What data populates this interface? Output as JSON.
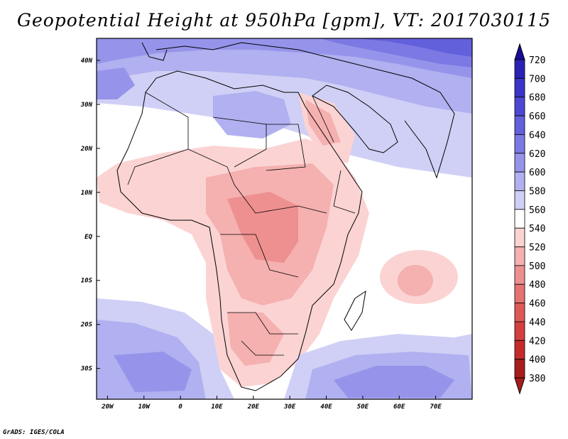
{
  "title": "Geopotential Height at 950hPa [gpm], VT: 2017030115",
  "footer": "GrADS: IGES/COLA",
  "map": {
    "lon_range": [
      -23,
      80
    ],
    "lat_range": [
      -37,
      45
    ],
    "x_ticks": [
      "20W",
      "10W",
      "0",
      "10E",
      "20E",
      "30E",
      "40E",
      "50E",
      "60E",
      "70E"
    ],
    "x_tick_values": [
      -20,
      -10,
      0,
      10,
      20,
      30,
      40,
      50,
      60,
      70
    ],
    "y_ticks": [
      "40N",
      "30N",
      "20N",
      "10N",
      "EQ",
      "10S",
      "20S",
      "30S"
    ],
    "y_tick_values": [
      40,
      30,
      20,
      10,
      0,
      -10,
      -20,
      -30
    ]
  },
  "colorbar": {
    "levels": [
      "720",
      "700",
      "680",
      "660",
      "640",
      "620",
      "600",
      "580",
      "560",
      "540",
      "520",
      "500",
      "480",
      "460",
      "440",
      "420",
      "400",
      "380"
    ],
    "colors": [
      "#1a0a96",
      "#2a22b4",
      "#3a35c8",
      "#4d48d4",
      "#6360dc",
      "#7c79e4",
      "#9694ea",
      "#b1b0f0",
      "#d0d0f6",
      "#ffffff",
      "#fbd3d3",
      "#f5b0b0",
      "#ee9090",
      "#e67272",
      "#de5858",
      "#d43f3f",
      "#c62b2b",
      "#a71d1d"
    ],
    "top_arrow_color": "#1a0a96",
    "bottom_arrow_color": "#a71d1d"
  }
}
